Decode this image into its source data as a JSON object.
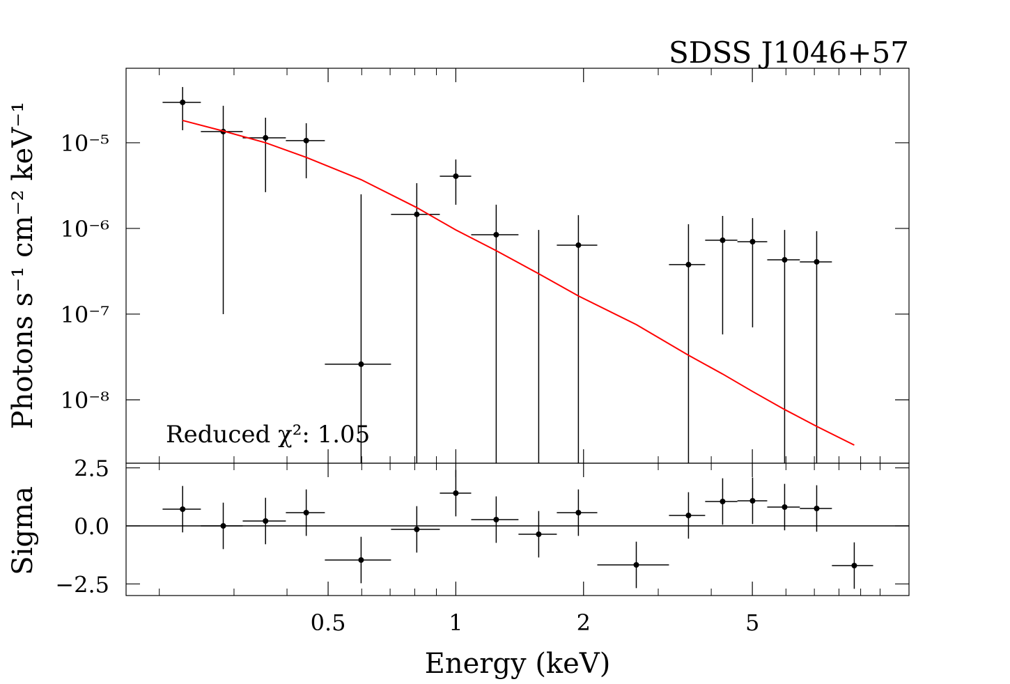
{
  "chart_data": [
    {
      "type": "errorbar",
      "title": "SDSS J1046+57",
      "ylabel": "Photons s⁻¹ cm⁻² keV⁻¹",
      "annotation": "Reduced χ²: 1.05",
      "log_x": true,
      "log_y": true,
      "color": "#000000",
      "x": [
        0.227,
        0.283,
        0.356,
        0.444,
        0.598,
        0.809,
        1.0,
        1.245,
        1.568,
        1.945,
        2.663,
        3.535,
        4.255,
        5.006,
        5.957,
        7.089,
        8.693
      ],
      "bins": [
        0.2036,
        0.2506,
        0.3145,
        0.3975,
        0.4912,
        0.7035,
        0.9168,
        1.087,
        1.405,
        1.73,
        2.155,
        3.18,
        3.87,
        4.61,
        5.42,
        6.47,
        7.7,
        9.63
      ],
      "values": [
        2.96e-05,
        1.35e-05,
        1.14e-05,
        1.06e-05,
        2.6e-08,
        1.46e-06,
        4.07e-06,
        8.45e-07,
        null,
        6.38e-07,
        null,
        3.78e-07,
        7.28e-07,
        7e-07,
        4.3e-07,
        4.07e-07,
        null
      ],
      "lower": [
        1.4e-05,
        1e-07,
        2.65e-06,
        3.85e-06,
        null,
        null,
        1.89e-06,
        null,
        null,
        null,
        null,
        null,
        5.8e-08,
        7e-08,
        null,
        null,
        null
      ],
      "upper": [
        4.47e-05,
        2.7e-05,
        1.96e-05,
        1.69e-05,
        2.5e-06,
        3.37e-06,
        6.38e-06,
        1.89e-06,
        9.6e-07,
        1.43e-06,
        null,
        1.12e-06,
        1.4e-06,
        1.32e-06,
        9.6e-07,
        9.3e-07,
        null
      ],
      "model": {
        "color": "#ff0000",
        "values": [
          1.82e-05,
          1.37e-05,
          1e-05,
          6.75e-06,
          3.71e-06,
          1.75e-06,
          9.6e-07,
          5.5e-07,
          2.96e-07,
          1.63e-07,
          7.55e-08,
          3.31e-08,
          2e-08,
          1.25e-08,
          7.7e-09,
          4.9e-09,
          2.96e-09
        ]
      },
      "xlim": [
        0.167,
        11.7
      ],
      "ylim": [
        1.82e-09,
        7.4e-05
      ],
      "xticks": [
        0.5,
        1,
        2,
        5
      ],
      "xminorticks": [
        0.2,
        0.3,
        0.4,
        0.6,
        0.7,
        0.8,
        0.9,
        3,
        4,
        6,
        7,
        8,
        9,
        10
      ],
      "yticks": [
        {
          "value": 1e-05,
          "label": "10⁻⁵"
        },
        {
          "value": 1e-06,
          "label": "10⁻⁶"
        },
        {
          "value": 1e-07,
          "label": "10⁻⁷"
        },
        {
          "value": 1e-08,
          "label": "10⁻⁸"
        }
      ]
    },
    {
      "type": "residual",
      "xlabel": "Energy (keV)",
      "ylabel": "Sigma",
      "log_x": true,
      "color": "#000000",
      "x": [
        0.227,
        0.283,
        0.356,
        0.444,
        0.598,
        0.809,
        1.0,
        1.245,
        1.568,
        1.945,
        2.663,
        3.535,
        4.255,
        5.006,
        5.957,
        7.089,
        8.693
      ],
      "bins": [
        0.2036,
        0.2506,
        0.3145,
        0.3975,
        0.4912,
        0.7035,
        0.9168,
        1.087,
        1.405,
        1.73,
        2.155,
        3.18,
        3.87,
        4.61,
        5.42,
        6.47,
        7.7,
        9.63
      ],
      "values": [
        0.72,
        0,
        0.21,
        0.57,
        -1.47,
        -0.15,
        1.41,
        0.27,
        -0.36,
        0.57,
        -1.68,
        0.45,
        1.05,
        1.08,
        0.81,
        0.75,
        -1.71
      ],
      "errors": [
        1,
        1,
        1,
        1,
        1,
        1,
        1,
        1,
        1,
        1,
        1,
        1,
        1,
        1,
        1,
        1,
        1
      ],
      "hline": 0,
      "xlim": [
        0.167,
        11.7
      ],
      "ylim": [
        -3.0,
        2.7
      ],
      "xticks": [
        0.5,
        1,
        2,
        5
      ],
      "xminorticks": [
        0.2,
        0.3,
        0.4,
        0.6,
        0.7,
        0.8,
        0.9,
        3,
        4,
        6,
        7,
        8,
        9,
        10
      ],
      "yticks": [
        2.5,
        {
          "value": 0,
          "label": "0.0"
        },
        {
          "value": -2.5,
          "label": "−2.5"
        }
      ]
    }
  ]
}
